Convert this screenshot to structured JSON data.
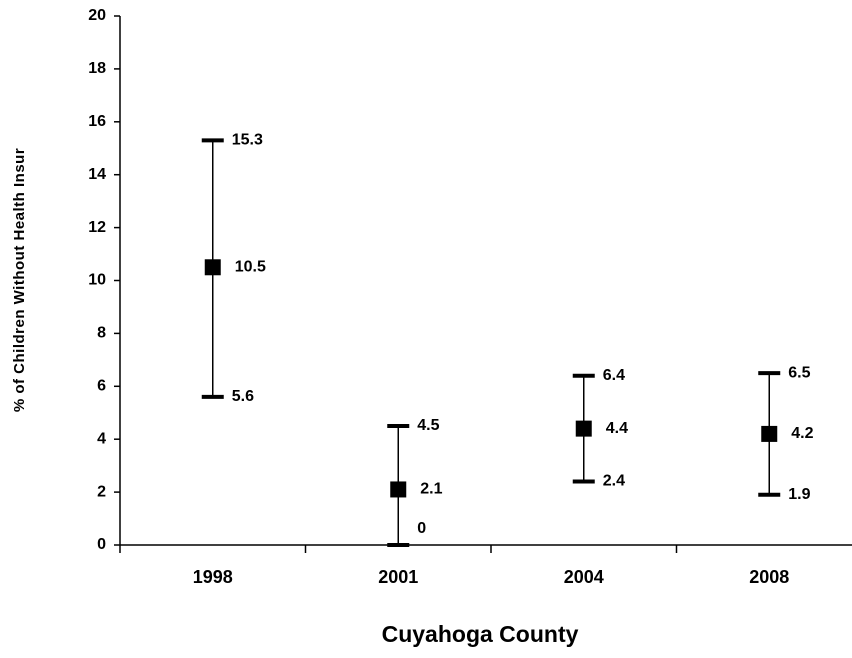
{
  "chart_data": {
    "type": "errorbar",
    "x_label": "Cuyahoga County",
    "y_label": "% of Children Without Health Insur",
    "categories": [
      "1998",
      "2001",
      "2004",
      "2008"
    ],
    "values": [
      10.5,
      2.1,
      4.4,
      4.2
    ],
    "upper": [
      15.3,
      4.5,
      6.4,
      6.5
    ],
    "lower": [
      5.6,
      0,
      2.4,
      1.9
    ],
    "color": "#000000",
    "ylim": [
      0,
      20
    ],
    "yticks": [
      0,
      2,
      4,
      6,
      8,
      10,
      12,
      14,
      16,
      18,
      20
    ],
    "grid": false
  }
}
